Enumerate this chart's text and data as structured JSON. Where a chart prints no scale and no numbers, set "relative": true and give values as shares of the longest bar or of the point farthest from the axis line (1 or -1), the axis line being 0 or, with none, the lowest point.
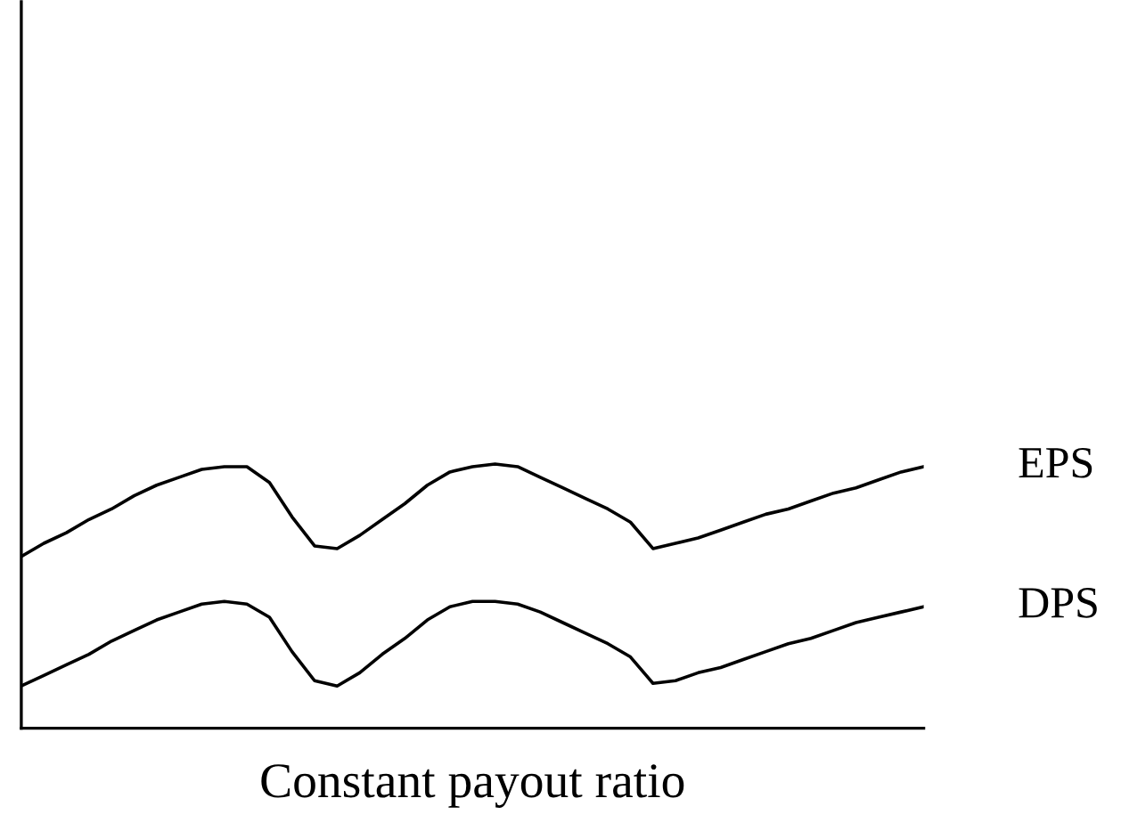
{
  "chart_data": {
    "type": "line",
    "xlabel": "Constant payout ratio",
    "relative": true,
    "marker": "none",
    "line_style": "solid",
    "categories": [
      null,
      null,
      null,
      null,
      null,
      null,
      null,
      null,
      null,
      null,
      null,
      null,
      null,
      null,
      null,
      null,
      null,
      null,
      null,
      null,
      null,
      null,
      null,
      null,
      null,
      null,
      null,
      null,
      null,
      null,
      null,
      null,
      null,
      null,
      null,
      null,
      null,
      null,
      null,
      null,
      null
    ],
    "series": [
      {
        "name": "EPS",
        "color": "#000000",
        "values": [
          0.65,
          0.7,
          0.74,
          0.79,
          0.83,
          0.88,
          0.92,
          0.95,
          0.98,
          0.99,
          0.99,
          0.93,
          0.8,
          0.69,
          0.68,
          0.73,
          0.79,
          0.85,
          0.92,
          0.97,
          0.99,
          1.0,
          0.99,
          0.95,
          0.91,
          0.87,
          0.83,
          0.78,
          0.68,
          0.7,
          0.72,
          0.75,
          0.78,
          0.81,
          0.83,
          0.86,
          0.89,
          0.91,
          0.94,
          0.97,
          0.99
        ]
      },
      {
        "name": "DPS",
        "color": "#000000",
        "values": [
          0.16,
          0.2,
          0.24,
          0.28,
          0.33,
          0.37,
          0.41,
          0.44,
          0.47,
          0.48,
          0.47,
          0.42,
          0.29,
          0.18,
          0.16,
          0.21,
          0.28,
          0.34,
          0.41,
          0.46,
          0.48,
          0.48,
          0.47,
          0.44,
          0.4,
          0.36,
          0.32,
          0.27,
          0.17,
          0.18,
          0.21,
          0.23,
          0.26,
          0.29,
          0.32,
          0.34,
          0.37,
          0.4,
          0.42,
          0.44,
          0.46
        ]
      }
    ]
  }
}
